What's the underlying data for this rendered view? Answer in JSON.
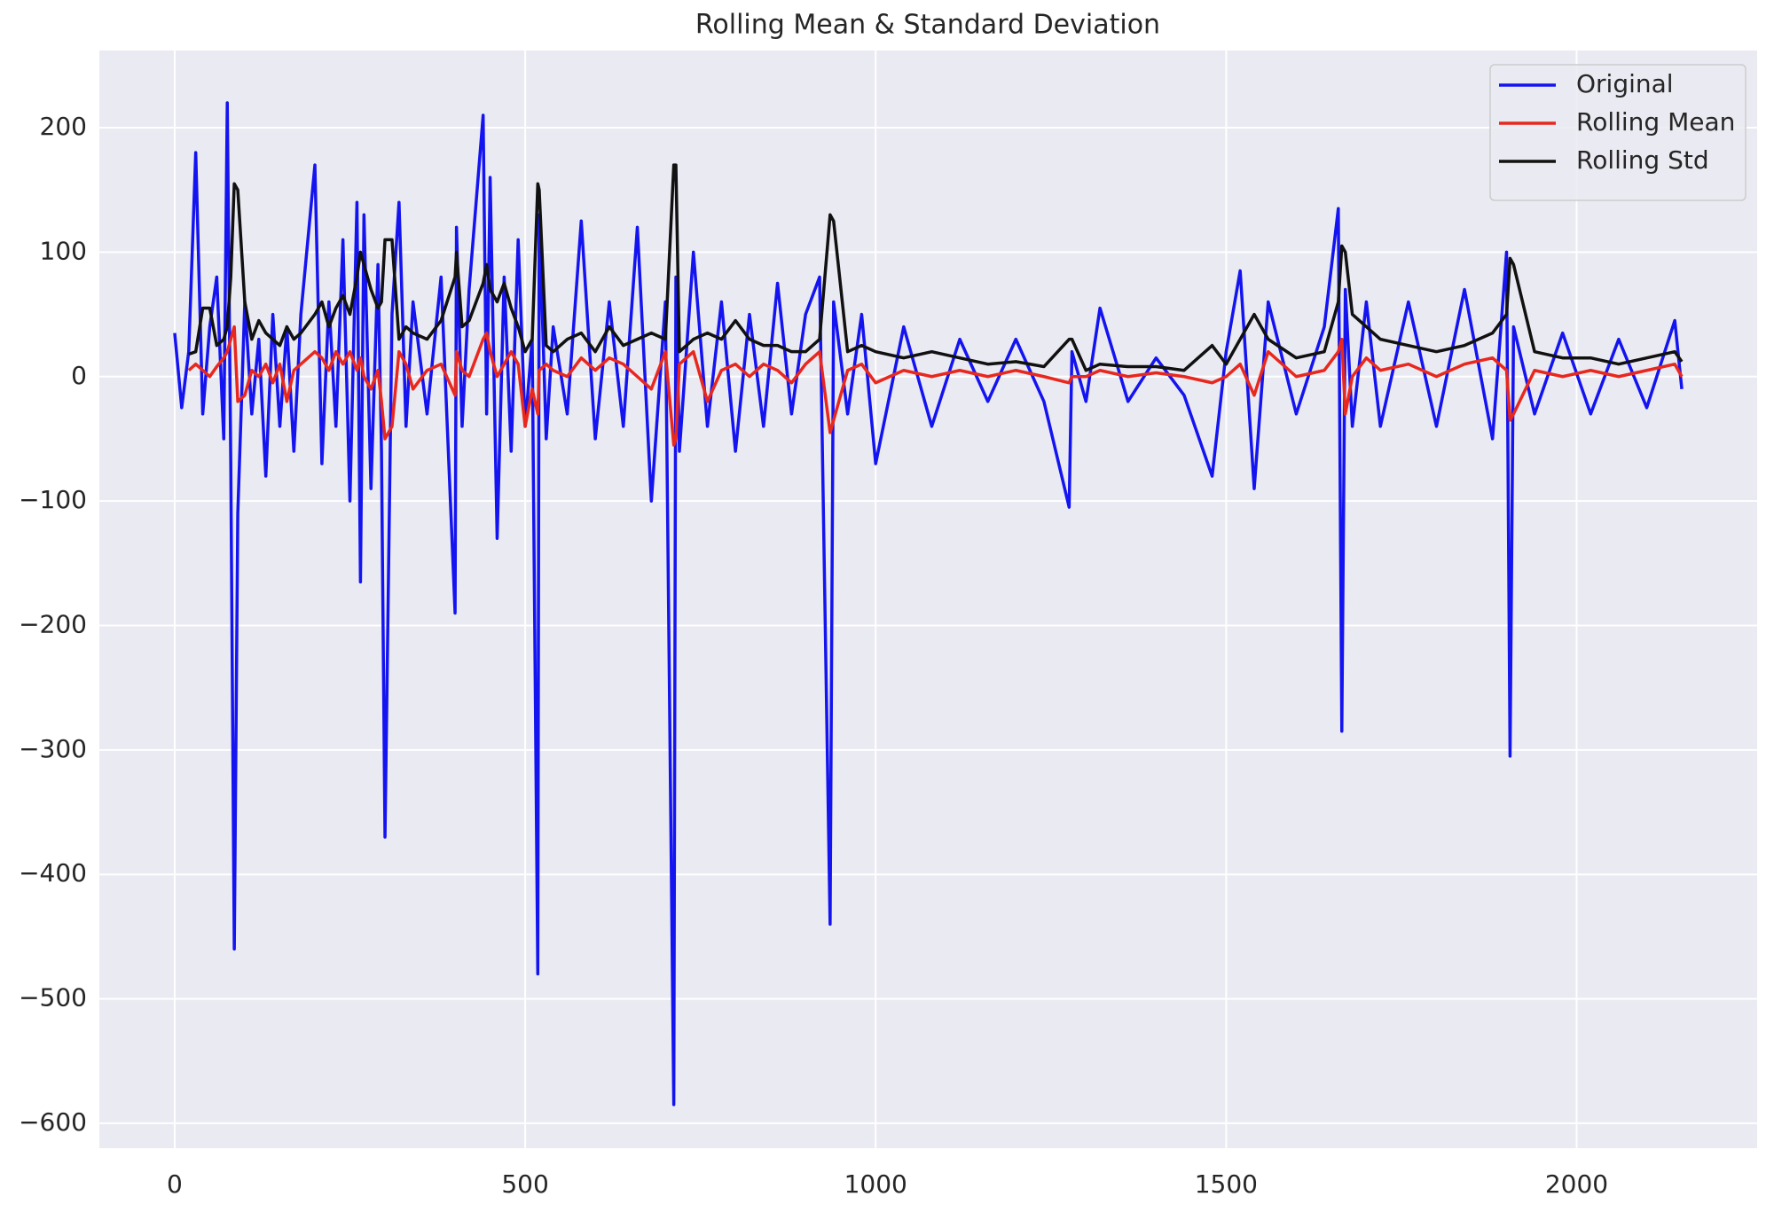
{
  "chart_data": {
    "type": "line",
    "title": "Rolling Mean & Standard Deviation",
    "x": [
      0,
      10,
      20,
      30,
      40,
      50,
      60,
      70,
      75,
      80,
      85,
      90,
      100,
      110,
      120,
      130,
      140,
      150,
      160,
      170,
      180,
      200,
      210,
      220,
      230,
      240,
      250,
      260,
      265,
      270,
      280,
      290,
      295,
      300,
      310,
      320,
      330,
      340,
      360,
      380,
      400,
      402,
      410,
      420,
      440,
      445,
      450,
      460,
      470,
      480,
      490,
      500,
      510,
      518,
      520,
      530,
      540,
      560,
      580,
      600,
      620,
      640,
      660,
      680,
      700,
      712,
      715,
      720,
      740,
      760,
      780,
      800,
      820,
      840,
      860,
      880,
      900,
      920,
      935,
      940,
      960,
      980,
      1000,
      1040,
      1080,
      1120,
      1160,
      1200,
      1240,
      1276,
      1280,
      1300,
      1320,
      1360,
      1400,
      1440,
      1480,
      1500,
      1520,
      1540,
      1560,
      1600,
      1640,
      1660,
      1665,
      1670,
      1680,
      1700,
      1720,
      1760,
      1800,
      1840,
      1880,
      1900,
      1905,
      1910,
      1940,
      1980,
      2020,
      2060,
      2100,
      2140,
      2150
    ],
    "series": [
      {
        "name": "Original",
        "color": "#1414f0",
        "values": [
          35,
          -25,
          20,
          180,
          -30,
          40,
          80,
          -50,
          220,
          -70,
          -460,
          -110,
          60,
          -30,
          30,
          -80,
          50,
          -40,
          40,
          -60,
          50,
          170,
          -70,
          60,
          -40,
          110,
          -100,
          140,
          -165,
          130,
          -90,
          90,
          -60,
          -370,
          50,
          140,
          -40,
          60,
          -30,
          80,
          -190,
          120,
          -40,
          70,
          210,
          -30,
          160,
          -130,
          80,
          -60,
          110,
          -40,
          30,
          -480,
          130,
          -50,
          40,
          -30,
          125,
          -50,
          60,
          -40,
          120,
          -100,
          60,
          -585,
          80,
          -60,
          100,
          -40,
          60,
          -60,
          50,
          -40,
          75,
          -30,
          50,
          80,
          -440,
          60,
          -30,
          50,
          -70,
          40,
          -40,
          30,
          -20,
          30,
          -20,
          -105,
          20,
          -20,
          55,
          -20,
          15,
          -15,
          -80,
          20,
          85,
          -90,
          60,
          -30,
          40,
          135,
          -285,
          70,
          -40,
          60,
          -40,
          60,
          -40,
          70,
          -50,
          100,
          -305,
          40,
          -30,
          35,
          -30,
          30,
          -25,
          45,
          -10
        ]
      },
      {
        "name": "Rolling Mean",
        "color": "#e8281e",
        "values": [
          null,
          null,
          5,
          10,
          5,
          0,
          8,
          15,
          20,
          30,
          40,
          -20,
          -15,
          5,
          0,
          10,
          -5,
          10,
          -20,
          5,
          10,
          20,
          15,
          5,
          20,
          10,
          20,
          5,
          15,
          0,
          -10,
          5,
          -20,
          -50,
          -40,
          20,
          10,
          -10,
          5,
          10,
          -15,
          20,
          5,
          0,
          30,
          35,
          20,
          0,
          10,
          20,
          10,
          -40,
          -10,
          -30,
          5,
          10,
          5,
          0,
          15,
          5,
          15,
          10,
          0,
          -10,
          20,
          -55,
          -50,
          10,
          20,
          -20,
          5,
          10,
          0,
          10,
          5,
          -5,
          10,
          20,
          -45,
          -35,
          5,
          10,
          -5,
          5,
          0,
          5,
          0,
          5,
          0,
          -5,
          0,
          0,
          5,
          0,
          3,
          0,
          -5,
          0,
          10,
          -15,
          20,
          0,
          5,
          20,
          30,
          -30,
          0,
          15,
          5,
          10,
          0,
          10,
          15,
          5,
          -35,
          -30,
          5,
          0,
          5,
          0,
          5,
          10,
          0
        ]
      },
      {
        "name": "Rolling Std",
        "color": "#111111",
        "values": [
          null,
          null,
          18,
          20,
          55,
          55,
          25,
          30,
          40,
          80,
          155,
          150,
          60,
          30,
          45,
          35,
          30,
          25,
          40,
          30,
          35,
          50,
          60,
          40,
          55,
          65,
          50,
          80,
          100,
          90,
          70,
          55,
          60,
          110,
          110,
          30,
          40,
          35,
          30,
          45,
          80,
          100,
          40,
          45,
          75,
          90,
          70,
          60,
          75,
          55,
          40,
          20,
          30,
          155,
          150,
          25,
          20,
          30,
          35,
          20,
          40,
          25,
          30,
          35,
          30,
          170,
          170,
          20,
          30,
          35,
          30,
          45,
          30,
          25,
          25,
          20,
          20,
          30,
          130,
          125,
          20,
          25,
          20,
          15,
          20,
          15,
          10,
          12,
          8,
          30,
          30,
          5,
          10,
          8,
          8,
          5,
          25,
          10,
          30,
          50,
          30,
          15,
          20,
          60,
          105,
          100,
          50,
          40,
          30,
          25,
          20,
          25,
          35,
          50,
          95,
          90,
          20,
          15,
          15,
          10,
          15,
          20,
          12
        ]
      }
    ],
    "xlim": [
      -107.5,
      2257.5
    ],
    "ylim": [
      -620,
      262
    ],
    "xticks": [
      0,
      500,
      1000,
      1500,
      2000
    ],
    "yticks": [
      {
        "value": -600,
        "label": "−600"
      },
      {
        "value": -500,
        "label": "−500"
      },
      {
        "value": -400,
        "label": "−400"
      },
      {
        "value": -300,
        "label": "−300"
      },
      {
        "value": -200,
        "label": "−200"
      },
      {
        "value": -100,
        "label": "−100"
      },
      0,
      100,
      200
    ],
    "grid": true,
    "legend": "upper right"
  }
}
